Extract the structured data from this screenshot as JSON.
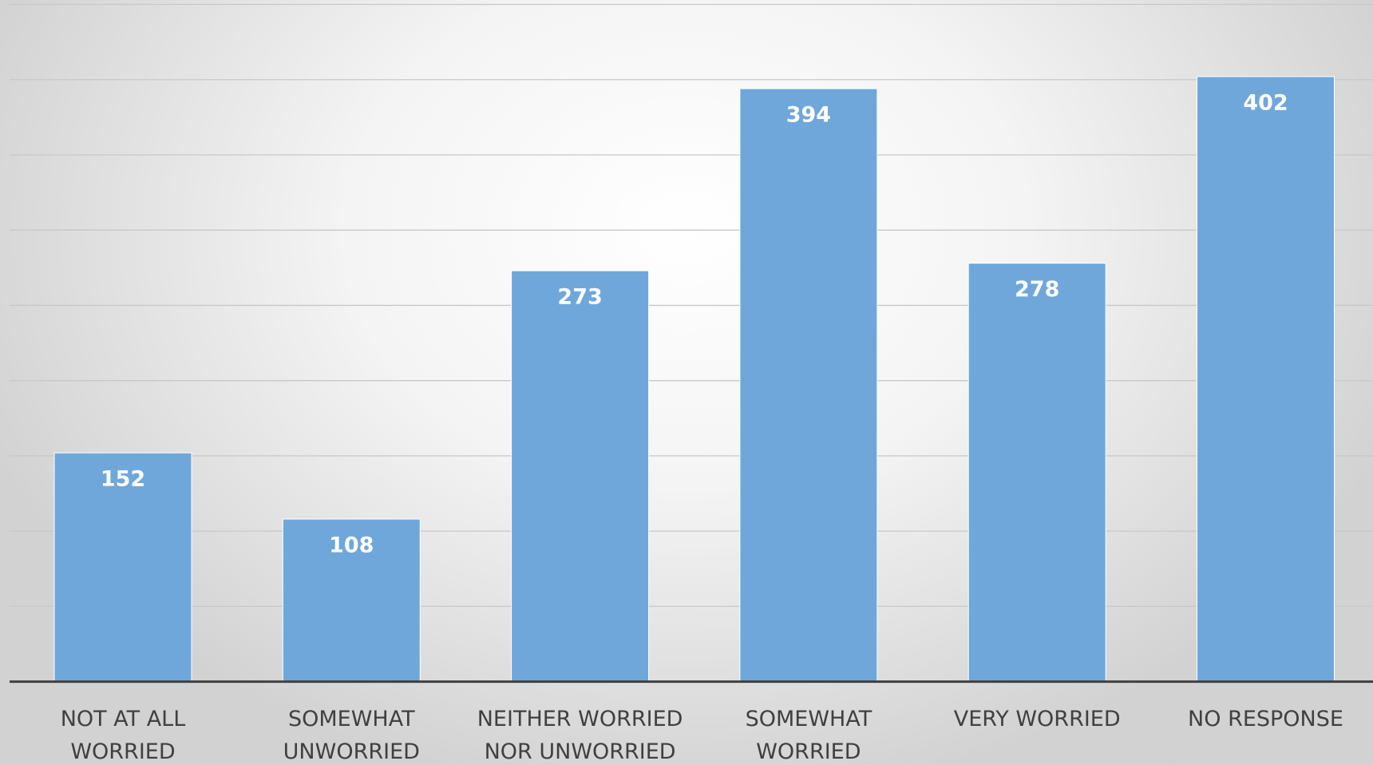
{
  "chart_data": {
    "type": "bar",
    "categories": [
      "NOT AT ALL WORRIED",
      "SOMEWHAT UNWORRIED",
      "NEITHER WORRIED NOR UNWORRIED",
      "SOMEWHAT WORRIED",
      "VERY WORRIED",
      "NO RESPONSE"
    ],
    "values": [
      152,
      108,
      273,
      394,
      278,
      402
    ],
    "color": "#70a7da",
    "ylim": [
      0,
      450
    ],
    "yticks": [
      0,
      50,
      100,
      150,
      200,
      250,
      300,
      350,
      400,
      450
    ],
    "grid": true
  }
}
